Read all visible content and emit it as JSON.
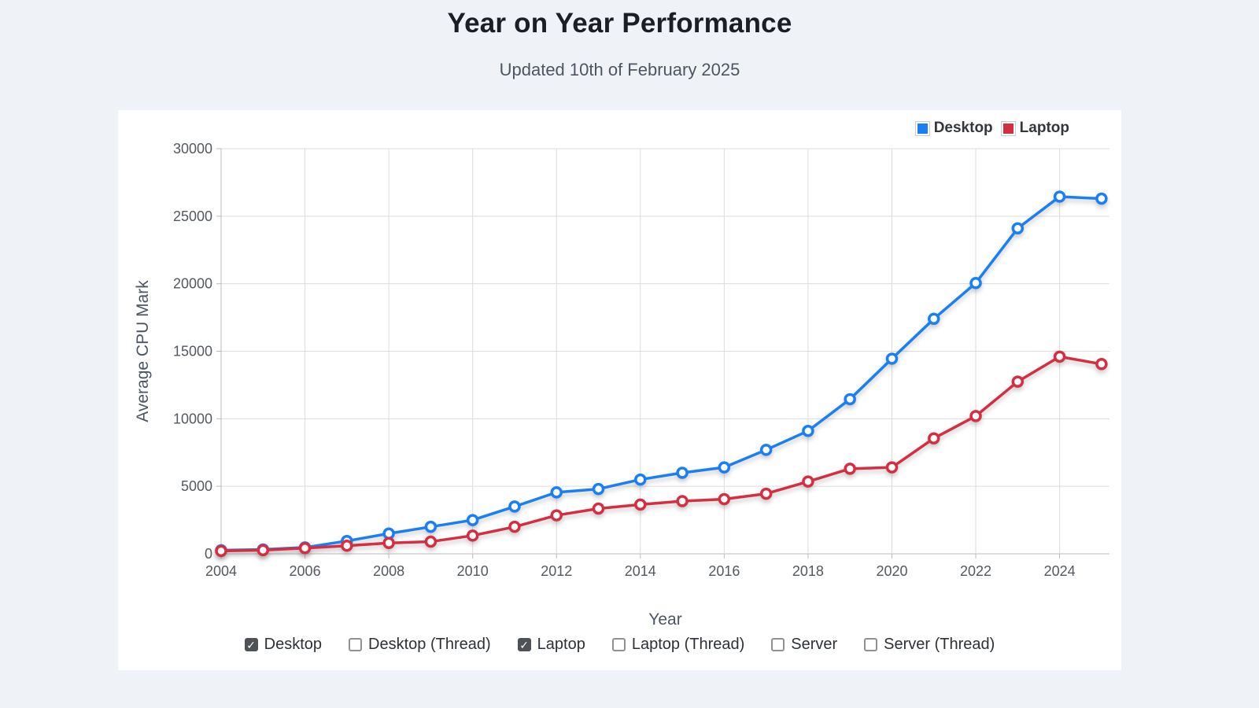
{
  "page": {
    "title": "Year on Year Performance",
    "subtitle": "Updated 10th of February 2025"
  },
  "legend": {
    "items": [
      {
        "label": "Desktop",
        "color": "#1a7ef5"
      },
      {
        "label": "Laptop",
        "color": "#d62e40"
      }
    ]
  },
  "chart_data": {
    "type": "line",
    "title": "Year on Year Performance",
    "xlabel": "Year",
    "ylabel": "Average CPU Mark",
    "x": [
      2004,
      2005,
      2006,
      2007,
      2008,
      2009,
      2010,
      2011,
      2012,
      2013,
      2014,
      2015,
      2016,
      2017,
      2018,
      2019,
      2020,
      2021,
      2022,
      2023,
      2024,
      2025
    ],
    "series": [
      {
        "name": "Desktop",
        "color": "#1a7ef5",
        "values": [
          260,
          320,
          470,
          950,
          1500,
          2000,
          2500,
          3500,
          4550,
          4800,
          5500,
          6000,
          6400,
          7700,
          9100,
          11450,
          14450,
          17400,
          20050,
          24100,
          26450,
          26300
        ]
      },
      {
        "name": "Laptop",
        "color": "#d62e40",
        "values": [
          210,
          270,
          420,
          600,
          800,
          900,
          1350,
          2000,
          2850,
          3350,
          3650,
          3900,
          4050,
          4450,
          5350,
          6300,
          6400,
          8550,
          10200,
          12750,
          14600,
          14050
        ]
      }
    ],
    "ylim": [
      0,
      30000
    ],
    "yticks": [
      0,
      5000,
      10000,
      15000,
      20000,
      25000,
      30000
    ],
    "xticks": [
      2004,
      2006,
      2008,
      2010,
      2012,
      2014,
      2016,
      2018,
      2020,
      2022,
      2024
    ],
    "grid": true,
    "legend_position": "top-right"
  },
  "controls": {
    "checkboxes": [
      {
        "label": "Desktop",
        "checked": true
      },
      {
        "label": "Desktop (Thread)",
        "checked": false
      },
      {
        "label": "Laptop",
        "checked": true
      },
      {
        "label": "Laptop (Thread)",
        "checked": false
      },
      {
        "label": "Server",
        "checked": false
      },
      {
        "label": "Server (Thread)",
        "checked": false
      }
    ]
  },
  "colors": {
    "page_bg": "#eff3f7",
    "card_bg": "#ffffff",
    "grid_line": "#dcdcdc",
    "axis_line": "#b7bcc1",
    "tick_text": "#54595f",
    "check_glyph": "✓"
  }
}
